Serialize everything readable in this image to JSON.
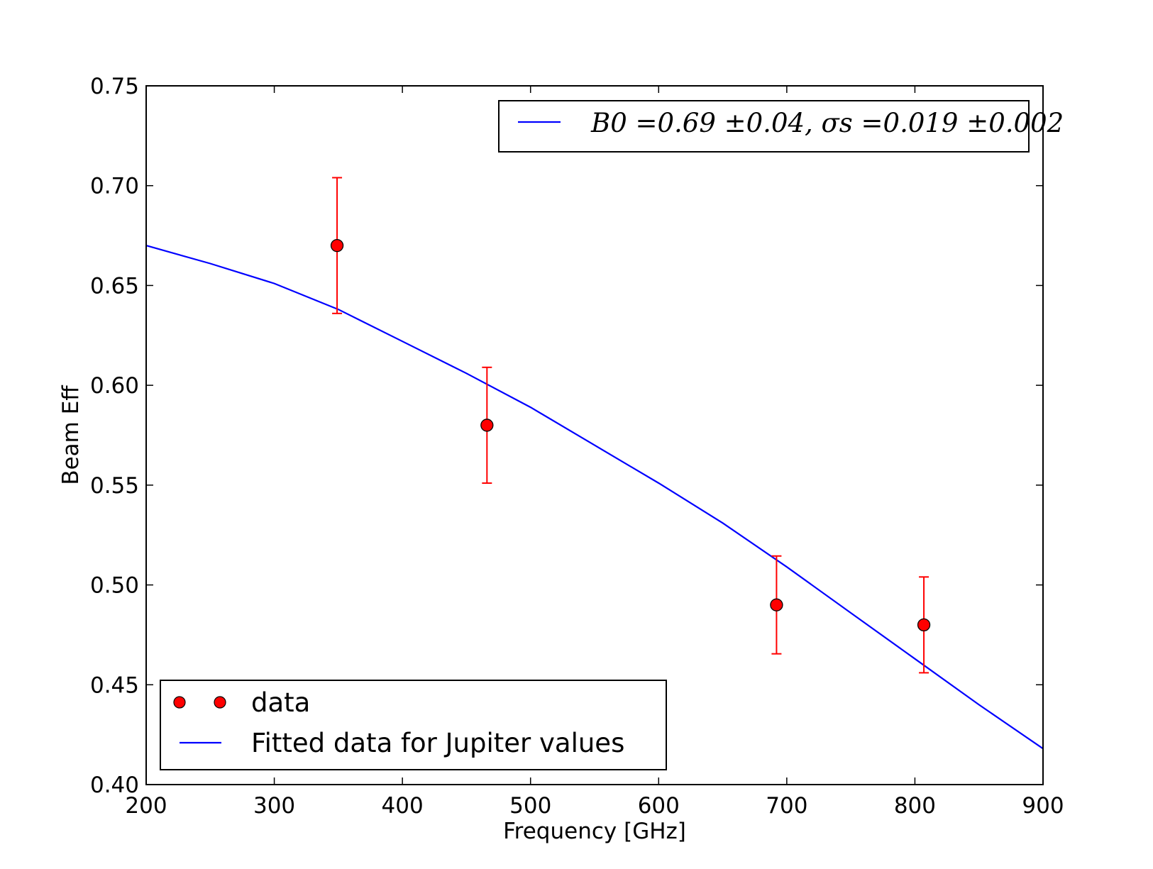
{
  "chart_data": {
    "type": "scatter",
    "title": "",
    "xlabel": "Frequency [GHz]",
    "ylabel": "Beam Eff",
    "xlim": [
      200,
      900
    ],
    "ylim": [
      0.4,
      0.75
    ],
    "xticks": [
      "200",
      "300",
      "400",
      "500",
      "600",
      "700",
      "800",
      "900"
    ],
    "yticks": [
      "0.40",
      "0.45",
      "0.50",
      "0.55",
      "0.60",
      "0.65",
      "0.70",
      "0.75"
    ],
    "grid": false,
    "series": [
      {
        "name": "data",
        "kind": "scatter_errorbar",
        "marker_color": "#ff0000",
        "error_color": "#ff0000",
        "points": [
          {
            "x": 349,
            "y": 0.67,
            "err": 0.034
          },
          {
            "x": 466,
            "y": 0.58,
            "err": 0.029
          },
          {
            "x": 692,
            "y": 0.49,
            "err": 0.0245
          },
          {
            "x": 807,
            "y": 0.48,
            "err": 0.024
          }
        ]
      },
      {
        "name": "Fitted data for Jupiter values",
        "kind": "line",
        "color": "#0000ff",
        "points": [
          {
            "x": 200,
            "y": 0.67
          },
          {
            "x": 250,
            "y": 0.661
          },
          {
            "x": 300,
            "y": 0.651
          },
          {
            "x": 350,
            "y": 0.638
          },
          {
            "x": 400,
            "y": 0.622
          },
          {
            "x": 450,
            "y": 0.606
          },
          {
            "x": 500,
            "y": 0.589
          },
          {
            "x": 550,
            "y": 0.57
          },
          {
            "x": 600,
            "y": 0.551
          },
          {
            "x": 650,
            "y": 0.531
          },
          {
            "x": 700,
            "y": 0.509
          },
          {
            "x": 750,
            "y": 0.486
          },
          {
            "x": 800,
            "y": 0.463
          },
          {
            "x": 850,
            "y": 0.44
          },
          {
            "x": 900,
            "y": 0.418
          }
        ]
      }
    ],
    "legend_fit_params": {
      "position": "top-right",
      "text": "B0 =0.69 ±0.04, σs =0.019 ±0.002"
    },
    "legend": {
      "position": "bottom-left",
      "entries": [
        "data",
        "Fitted data for Jupiter values"
      ]
    }
  }
}
